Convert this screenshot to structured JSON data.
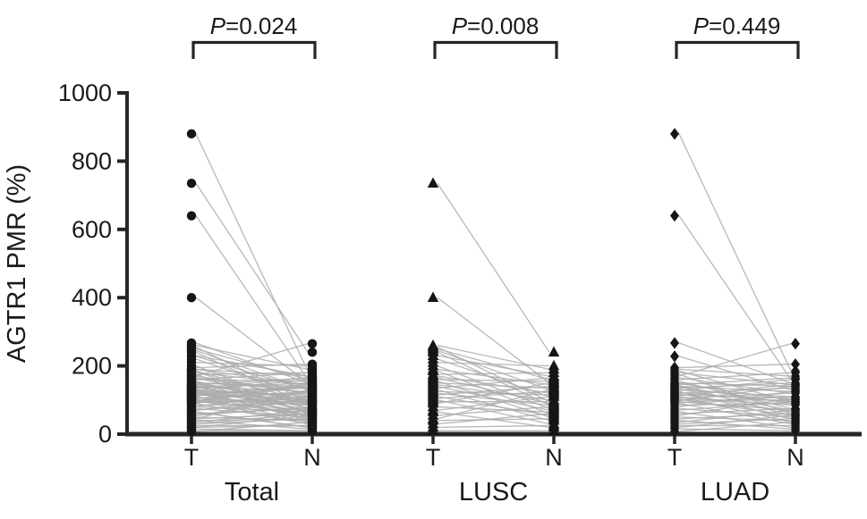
{
  "chart_data": {
    "type": "scatter",
    "subtype": "paired-dot-plot",
    "ylabel": "AGTR1 PMR (%)",
    "ylim": [
      0,
      1000
    ],
    "yticks": [
      0,
      200,
      400,
      600,
      800,
      1000
    ],
    "column_labels": [
      "T",
      "N"
    ],
    "legend_position": "none",
    "grid": false,
    "colors": {
      "marker": "#161616",
      "axis": "#262626",
      "pair_line": "#ababab",
      "text": "#1a1a1a"
    },
    "panels": [
      {
        "name": "Total",
        "p_symbol": "P",
        "p_rest": "=0.024",
        "marker": "circle",
        "pairs": [
          [
            735,
            240
          ],
          [
            400,
            150
          ],
          [
            260,
            190
          ],
          [
            255,
            95
          ],
          [
            250,
            160
          ],
          [
            245,
            130
          ],
          [
            240,
            85
          ],
          [
            230,
            170
          ],
          [
            220,
            110
          ],
          [
            210,
            200
          ],
          [
            200,
            75
          ],
          [
            190,
            145
          ],
          [
            185,
            60
          ],
          [
            175,
            180
          ],
          [
            170,
            120
          ],
          [
            165,
            90
          ],
          [
            160,
            155
          ],
          [
            155,
            50
          ],
          [
            150,
            135
          ],
          [
            145,
            100
          ],
          [
            140,
            70
          ],
          [
            135,
            165
          ],
          [
            130,
            40
          ],
          [
            125,
            115
          ],
          [
            120,
            85
          ],
          [
            115,
            140
          ],
          [
            110,
            55
          ],
          [
            105,
            125
          ],
          [
            100,
            30
          ],
          [
            95,
            95
          ],
          [
            90,
            150
          ],
          [
            80,
            65
          ],
          [
            70,
            110
          ],
          [
            65,
            20
          ],
          [
            55,
            80
          ],
          [
            45,
            130
          ],
          [
            40,
            45
          ],
          [
            30,
            60
          ],
          [
            20,
            25
          ],
          [
            10,
            10
          ],
          [
            880,
            185
          ],
          [
            640,
            160
          ],
          [
            267,
            150
          ],
          [
            228,
            130
          ],
          [
            195,
            205
          ],
          [
            190,
            170
          ],
          [
            185,
            95
          ],
          [
            180,
            145
          ],
          [
            175,
            60
          ],
          [
            170,
            265
          ],
          [
            165,
            120
          ],
          [
            160,
            180
          ],
          [
            155,
            75
          ],
          [
            150,
            140
          ],
          [
            148,
            100
          ],
          [
            145,
            165
          ],
          [
            142,
            55
          ],
          [
            140,
            125
          ],
          [
            138,
            90
          ],
          [
            135,
            150
          ],
          [
            132,
            70
          ],
          [
            130,
            110
          ],
          [
            128,
            160
          ],
          [
            125,
            45
          ],
          [
            122,
            95
          ],
          [
            120,
            135
          ],
          [
            118,
            65
          ],
          [
            115,
            105
          ],
          [
            112,
            145
          ],
          [
            110,
            35
          ],
          [
            108,
            85
          ],
          [
            105,
            120
          ],
          [
            102,
            55
          ],
          [
            100,
            100
          ],
          [
            98,
            140
          ],
          [
            95,
            70
          ],
          [
            92,
            110
          ],
          [
            90,
            30
          ],
          [
            85,
            90
          ],
          [
            80,
            125
          ],
          [
            75,
            50
          ],
          [
            70,
            95
          ],
          [
            65,
            20
          ],
          [
            60,
            75
          ],
          [
            55,
            105
          ],
          [
            50,
            40
          ],
          [
            45,
            60
          ],
          [
            40,
            15
          ],
          [
            35,
            70
          ],
          [
            30,
            45
          ],
          [
            25,
            25
          ],
          [
            20,
            55
          ],
          [
            15,
            10
          ],
          [
            8,
            35
          ]
        ]
      },
      {
        "name": "LUSC",
        "p_symbol": "P",
        "p_rest": "=0.008",
        "marker": "triangle",
        "pairs": [
          [
            735,
            240
          ],
          [
            400,
            150
          ],
          [
            260,
            190
          ],
          [
            255,
            95
          ],
          [
            250,
            160
          ],
          [
            245,
            130
          ],
          [
            240,
            85
          ],
          [
            230,
            170
          ],
          [
            220,
            110
          ],
          [
            210,
            200
          ],
          [
            200,
            75
          ],
          [
            190,
            145
          ],
          [
            185,
            60
          ],
          [
            175,
            180
          ],
          [
            170,
            120
          ],
          [
            165,
            90
          ],
          [
            160,
            155
          ],
          [
            155,
            50
          ],
          [
            150,
            135
          ],
          [
            145,
            100
          ],
          [
            140,
            70
          ],
          [
            135,
            165
          ],
          [
            130,
            40
          ],
          [
            125,
            115
          ],
          [
            120,
            85
          ],
          [
            115,
            140
          ],
          [
            110,
            55
          ],
          [
            105,
            125
          ],
          [
            100,
            30
          ],
          [
            95,
            95
          ],
          [
            90,
            150
          ],
          [
            80,
            65
          ],
          [
            70,
            110
          ],
          [
            65,
            20
          ],
          [
            55,
            80
          ],
          [
            45,
            130
          ],
          [
            40,
            45
          ],
          [
            30,
            60
          ],
          [
            20,
            25
          ],
          [
            10,
            10
          ]
        ]
      },
      {
        "name": "LUAD",
        "p_symbol": "P",
        "p_rest": "=0.449",
        "marker": "diamond",
        "pairs": [
          [
            880,
            185
          ],
          [
            640,
            160
          ],
          [
            267,
            150
          ],
          [
            228,
            130
          ],
          [
            195,
            205
          ],
          [
            190,
            170
          ],
          [
            185,
            95
          ],
          [
            180,
            145
          ],
          [
            175,
            60
          ],
          [
            170,
            265
          ],
          [
            165,
            120
          ],
          [
            160,
            180
          ],
          [
            155,
            75
          ],
          [
            150,
            140
          ],
          [
            148,
            100
          ],
          [
            145,
            165
          ],
          [
            142,
            55
          ],
          [
            140,
            125
          ],
          [
            138,
            90
          ],
          [
            135,
            150
          ],
          [
            132,
            70
          ],
          [
            130,
            110
          ],
          [
            128,
            160
          ],
          [
            125,
            45
          ],
          [
            122,
            95
          ],
          [
            120,
            135
          ],
          [
            118,
            65
          ],
          [
            115,
            105
          ],
          [
            112,
            145
          ],
          [
            110,
            35
          ],
          [
            108,
            85
          ],
          [
            105,
            120
          ],
          [
            102,
            55
          ],
          [
            100,
            100
          ],
          [
            98,
            140
          ],
          [
            95,
            70
          ],
          [
            92,
            110
          ],
          [
            90,
            30
          ],
          [
            85,
            90
          ],
          [
            80,
            125
          ],
          [
            75,
            50
          ],
          [
            70,
            95
          ],
          [
            65,
            20
          ],
          [
            60,
            75
          ],
          [
            55,
            105
          ],
          [
            50,
            40
          ],
          [
            45,
            60
          ],
          [
            40,
            15
          ],
          [
            35,
            70
          ],
          [
            30,
            45
          ],
          [
            25,
            25
          ],
          [
            20,
            55
          ],
          [
            15,
            10
          ],
          [
            8,
            35
          ]
        ]
      }
    ]
  }
}
